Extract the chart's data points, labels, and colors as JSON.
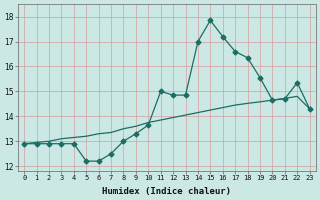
{
  "xlabel": "Humidex (Indice chaleur)",
  "ylabel": "",
  "bg_color": "#cce8e4",
  "grid_color": "#b0d4d0",
  "line_color": "#1a6e64",
  "xlim": [
    -0.5,
    23.5
  ],
  "ylim": [
    11.8,
    18.5
  ],
  "yticks": [
    12,
    13,
    14,
    15,
    16,
    17,
    18
  ],
  "xticks": [
    0,
    1,
    2,
    3,
    4,
    5,
    6,
    7,
    8,
    9,
    10,
    11,
    12,
    13,
    14,
    15,
    16,
    17,
    18,
    19,
    20,
    21,
    22,
    23
  ],
  "x": [
    0,
    1,
    2,
    3,
    4,
    5,
    6,
    7,
    8,
    9,
    10,
    11,
    12,
    13,
    14,
    15,
    16,
    17,
    18,
    19,
    20,
    21,
    22,
    23
  ],
  "y_jagged": [
    12.9,
    12.9,
    12.9,
    12.9,
    12.9,
    12.2,
    12.2,
    12.5,
    13.0,
    13.3,
    13.65,
    15.0,
    14.85,
    14.85,
    17.0,
    17.85,
    17.2,
    16.6,
    16.35,
    15.55,
    14.65,
    14.7,
    15.35,
    14.3
  ],
  "y_smooth": [
    12.9,
    12.95,
    13.0,
    13.1,
    13.15,
    13.2,
    13.3,
    13.35,
    13.5,
    13.6,
    13.75,
    13.85,
    13.95,
    14.05,
    14.15,
    14.25,
    14.35,
    14.45,
    14.52,
    14.58,
    14.65,
    14.72,
    14.8,
    14.3
  ],
  "marker": "D",
  "markersize": 2.5
}
